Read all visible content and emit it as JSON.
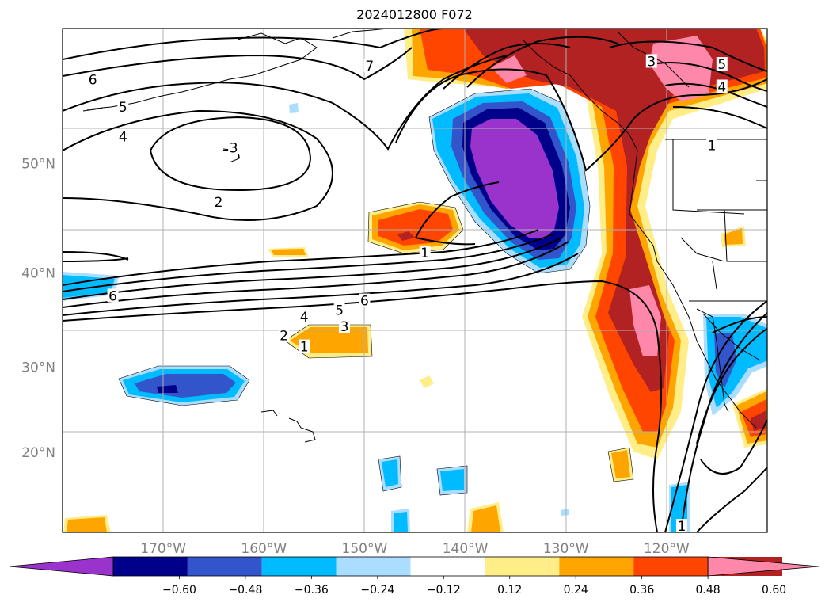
{
  "title": "2024012800 F072",
  "map": {
    "projection": "Mercator",
    "extent": {
      "lon_min": -180,
      "lon_max": -110,
      "lat_min": 10,
      "lat_max": 60
    },
    "lon_labels": [
      "170°W",
      "160°W",
      "150°W",
      "140°W",
      "130°W",
      "120°W"
    ],
    "lat_labels": [
      "50°N",
      "40°N",
      "30°N",
      "20°N"
    ],
    "contour_labels": [
      {
        "text": "7",
        "lon": -149.5,
        "lat": 57.5
      },
      {
        "text": "6",
        "lon": -177.0,
        "lat": 56.5
      },
      {
        "text": "5",
        "lon": -174.0,
        "lat": 54.5
      },
      {
        "text": "4",
        "lon": -174.0,
        "lat": 52.2
      },
      {
        "text": "3",
        "lon": -163.0,
        "lat": 51.3
      },
      {
        "text": "2",
        "lon": -164.5,
        "lat": 46.7
      },
      {
        "text": "1",
        "lon": -144.0,
        "lat": 42.0
      },
      {
        "text": "6",
        "lon": -175.0,
        "lat": 37.7
      },
      {
        "text": "6",
        "lon": -150.0,
        "lat": 37.2
      },
      {
        "text": "5",
        "lon": -152.5,
        "lat": 36.2
      },
      {
        "text": "4",
        "lon": -156.0,
        "lat": 35.5
      },
      {
        "text": "3",
        "lon": -152.0,
        "lat": 34.5
      },
      {
        "text": "2",
        "lon": -158.0,
        "lat": 33.5
      },
      {
        "text": "1",
        "lon": -156.0,
        "lat": 32.3
      },
      {
        "text": "3",
        "lon": -121.5,
        "lat": 57.8
      },
      {
        "text": "5",
        "lon": -114.5,
        "lat": 57.6
      },
      {
        "text": "4",
        "lon": -114.5,
        "lat": 56.0
      },
      {
        "text": "1",
        "lon": -115.5,
        "lat": 51.5
      },
      {
        "text": "1",
        "lon": -118.5,
        "lat": 10.8
      }
    ]
  },
  "colorbar": {
    "tick_labels": [
      "−0.60",
      "−0.48",
      "−0.36",
      "−0.24",
      "−0.12",
      "0.12",
      "0.24",
      "0.36",
      "0.48",
      "0.60"
    ],
    "colors": [
      "#9933cc",
      "#00008b",
      "#3355cc",
      "#00bbff",
      "#aaddff",
      "#ffffff",
      "#ffee88",
      "#ffa500",
      "#ff4500",
      "#b22222",
      "#ff88aa"
    ],
    "extend": "both"
  },
  "colors": {
    "purple": "#9933cc",
    "navy": "#00008b",
    "blue": "#3355cc",
    "sky": "#00bbff",
    "lightblue": "#aaddff",
    "yellow": "#ffee88",
    "orange": "#ffa500",
    "redorange": "#ff4500",
    "firebrick": "#b22222",
    "pink": "#ff88aa",
    "gridline": "#b0b0b0",
    "axis_label": "#808080"
  }
}
